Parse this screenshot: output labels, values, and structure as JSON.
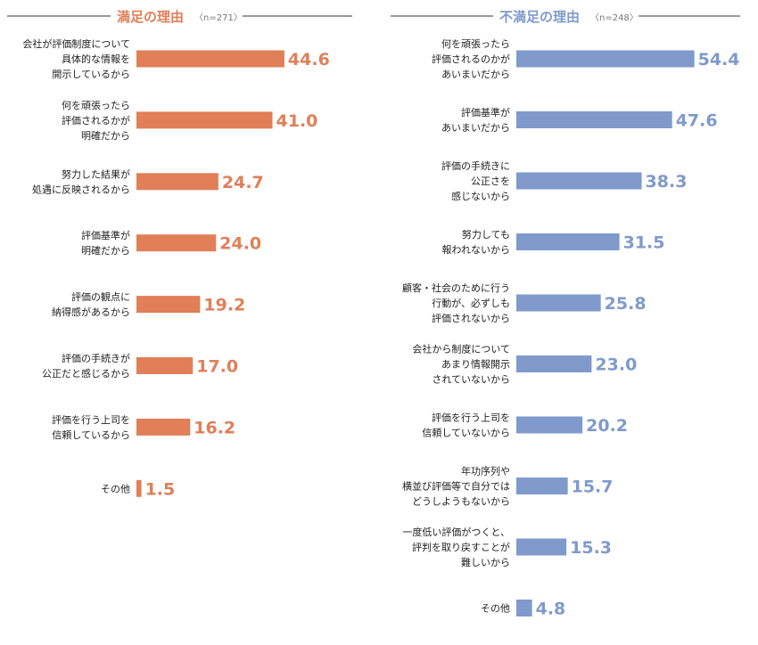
{
  "chart_data": [
    {
      "type": "bar",
      "orientation": "horizontal",
      "title": "満足の理由",
      "subtitle": "〈n=271〉",
      "color": "#E07F58",
      "categories": [
        "会社が評価制度について\n具体的な情報を\n開示しているから",
        "何を頑張ったら\n評価されるかが\n明確だから",
        "努力した結果が\n処遇に反映されるから",
        "評価基準が\n明確だから",
        "評価の観点に\n納得感があるから",
        "評価の手続きが\n公正だと感じるから",
        "評価を行う上司を\n信頼しているから",
        "その他"
      ],
      "values": [
        44.6,
        41.0,
        24.7,
        24.0,
        19.2,
        17.0,
        16.2,
        1.5
      ],
      "value_labels": [
        "44.6",
        "41.0",
        "24.7",
        "24.0",
        "19.2",
        "17.0",
        "16.2",
        "1.5"
      ]
    },
    {
      "type": "bar",
      "orientation": "horizontal",
      "title": "不満足の理由",
      "subtitle": "〈n=248〉",
      "color": "#7F9ACB",
      "categories": [
        "何を頑張ったら\n評価されるのかが\nあいまいだから",
        "評価基準が\nあいまいだから",
        "評価の手続きに\n公正さを\n感じないから",
        "努力しても\n報われないから",
        "顧客・社会のために行う\n行動が、必ずしも\n評価されないから",
        "会社から制度について\nあまり情報開示\nされていないから",
        "評価を行う上司を\n信頼していないから",
        "年功序列や\n横並び評価等で自分では\nどうしようもないから",
        "一度低い評価がつくと、\n評判を取り戻すことが\n難しいから",
        "その他"
      ],
      "values": [
        54.4,
        47.6,
        38.3,
        31.5,
        25.8,
        23.0,
        20.2,
        15.7,
        15.3,
        4.8
      ],
      "value_labels": [
        "54.4",
        "47.6",
        "38.3",
        "31.5",
        "25.8",
        "23.0",
        "20.2",
        "15.7",
        "15.3",
        "4.8"
      ]
    }
  ]
}
